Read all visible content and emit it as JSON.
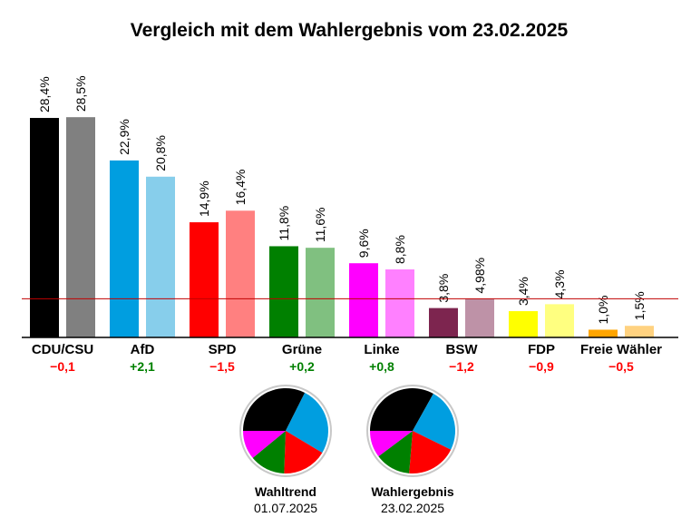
{
  "chart_data": {
    "type": "bar",
    "title": "Vergleich mit dem Wahlergebnis vom 23.02.2025",
    "categories": [
      "CDU/CSU",
      "AfD",
      "SPD",
      "Grüne",
      "Linke",
      "BSW",
      "FDP",
      "Freie Wähler"
    ],
    "series": [
      {
        "values": [
          28.4,
          22.9,
          14.9,
          11.8,
          9.6,
          3.8,
          3.4,
          1.0
        ],
        "labels": [
          "28,4%",
          "22,9%",
          "14,9%",
          "11,8%",
          "9,6%",
          "3,8%",
          "3,4%",
          "1,0%"
        ],
        "colors": [
          "#000000",
          "#009ee0",
          "#ff0000",
          "#008000",
          "#ff00ff",
          "#7d254f",
          "#ffff00",
          "#ffa500"
        ]
      },
      {
        "values": [
          28.5,
          20.8,
          16.4,
          11.6,
          8.8,
          4.98,
          4.3,
          1.5
        ],
        "labels": [
          "28,5%",
          "20,8%",
          "16,4%",
          "11,6%",
          "8,8%",
          "4,98%",
          "4,3%",
          "1,5%"
        ],
        "colors": [
          "#808080",
          "#87ceeb",
          "#ff8080",
          "#80c080",
          "#ff80ff",
          "#be92a7",
          "#ffff80",
          "#ffd280"
        ]
      }
    ],
    "differences": [
      "−0,1",
      "+2,1",
      "−1,5",
      "+0,2",
      "+0,8",
      "−1,2",
      "−0,9",
      "−0,5"
    ],
    "difference_colors": [
      "#ff0000",
      "#008000",
      "#ff0000",
      "#008000",
      "#008000",
      "#ff0000",
      "#ff0000",
      "#ff0000"
    ],
    "threshold": 5,
    "threshold_color": "#c00000",
    "ylim": [
      0,
      30
    ],
    "grid": false,
    "pies": [
      {
        "label": "Wahltrend",
        "date": "01.07.2025",
        "values": [
          28.4,
          22.9,
          14.9,
          11.8,
          9.6
        ],
        "colors": [
          "#000000",
          "#009ee0",
          "#ff0000",
          "#008000",
          "#ff00ff"
        ]
      },
      {
        "label": "Wahlergebnis",
        "date": "23.02.2025",
        "values": [
          28.5,
          20.8,
          16.4,
          11.6,
          8.8
        ],
        "colors": [
          "#000000",
          "#009ee0",
          "#ff0000",
          "#008000",
          "#ff00ff"
        ]
      }
    ]
  }
}
